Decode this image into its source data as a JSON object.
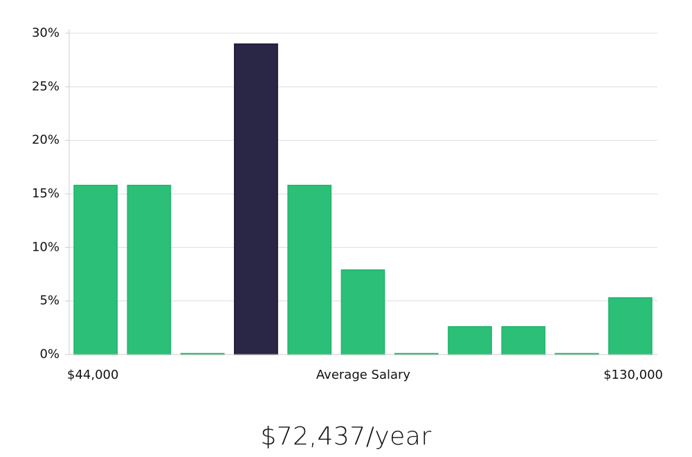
{
  "chart_data": {
    "type": "bar",
    "title": "",
    "xlabel": "Average Salary",
    "ylabel": "",
    "x_range_labels": {
      "min": "$44,000",
      "max": "$130,000"
    },
    "categories": [
      "bin-1",
      "bin-2",
      "bin-3",
      "bin-4",
      "bin-5",
      "bin-6",
      "bin-7",
      "bin-8",
      "bin-9",
      "bin-10",
      "bin-11"
    ],
    "values": [
      15.8,
      15.8,
      0,
      29,
      15.8,
      7.9,
      0,
      2.6,
      2.6,
      0,
      5.3
    ],
    "highlight_index": 3,
    "ylim": [
      0,
      30
    ],
    "yticks": [
      0,
      5,
      10,
      15,
      20,
      25,
      30
    ],
    "ytick_labels": [
      "0%",
      "5%",
      "10%",
      "15%",
      "20%",
      "25%",
      "30%"
    ],
    "grid": true,
    "legend": "none",
    "colors": {
      "bar": "#2bbf78",
      "bar_edge": "#22b36c",
      "highlight": "#2a2645",
      "highlight_edge": "#1c1838",
      "grid": "#dddddd",
      "axis": "#cccccc"
    }
  },
  "summary": {
    "salary_text": "$72,437/year"
  }
}
